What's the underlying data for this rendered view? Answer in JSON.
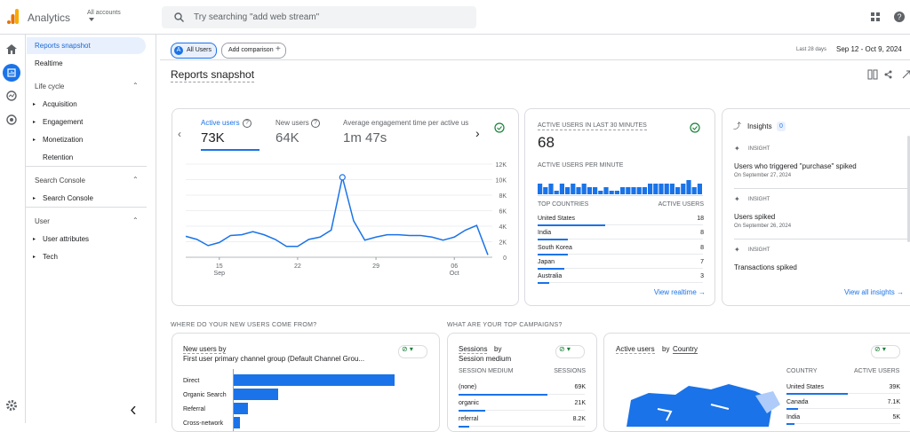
{
  "header": {
    "app_name": "Analytics",
    "account_label": "All accounts",
    "search_placeholder": "Try searching \"add web stream\""
  },
  "sidebar": {
    "top_items": [
      "Reports snapshot",
      "Realtime"
    ],
    "sections": [
      {
        "title": "Life cycle",
        "items": [
          "Acquisition",
          "Engagement",
          "Monetization",
          "Retention"
        ]
      },
      {
        "title": "Search Console",
        "items": [
          "Search Console"
        ]
      },
      {
        "title": "User",
        "items": [
          "User attributes",
          "Tech"
        ]
      }
    ]
  },
  "toolbar": {
    "segment_badge": "A",
    "segment": "All Users",
    "add_comparison": "Add comparison",
    "date_range_label": "Last 28 days",
    "date_range": "Sep 12 - Oct 9, 2024"
  },
  "page_title": "Reports snapshot",
  "overview_card": {
    "metrics": [
      {
        "label": "Active users",
        "value": "73K"
      },
      {
        "label": "New users",
        "value": "64K"
      },
      {
        "label": "Average engagement time per active us",
        "value": "1m 47s"
      }
    ],
    "chart": {
      "type": "line",
      "color": "#1a73e8",
      "categories": [
        null,
        null,
        null,
        "15",
        null,
        null,
        null,
        null,
        null,
        null,
        "22",
        null,
        null,
        null,
        null,
        null,
        null,
        "29",
        null,
        null,
        null,
        null,
        null,
        null,
        "06",
        null,
        null,
        null
      ],
      "months": [
        null,
        null,
        null,
        "Sep",
        null,
        null,
        null,
        null,
        null,
        null,
        null,
        null,
        null,
        null,
        null,
        null,
        null,
        null,
        null,
        null,
        null,
        null,
        null,
        null,
        "Oct",
        null,
        null,
        null
      ],
      "values": [
        2700,
        2300,
        1500,
        1900,
        2800,
        2900,
        3300,
        2900,
        2300,
        1400,
        1400,
        2300,
        2600,
        3500,
        10300,
        4700,
        2200,
        2600,
        2900,
        2900,
        2800,
        2800,
        2600,
        2200,
        2600,
        3500,
        4100,
        300
      ],
      "ylim": [
        0,
        12000
      ],
      "yticks": [
        0,
        {
          "value": 2000,
          "label": "2K"
        },
        {
          "value": 4000,
          "label": "4K"
        },
        {
          "value": 6000,
          "label": "6K"
        },
        {
          "value": 8000,
          "label": "8K"
        },
        {
          "value": 10000,
          "label": "10K"
        },
        {
          "value": 12000,
          "label": "12K"
        }
      ]
    }
  },
  "realtime_card": {
    "title": "ACTIVE USERS IN LAST 30 MINUTES",
    "value": "68",
    "per_minute_title": "ACTIVE USERS PER MINUTE",
    "per_minute": [
      3,
      2,
      3,
      1,
      3,
      2,
      3,
      2,
      3,
      2,
      2,
      1,
      2,
      1,
      1,
      2,
      2,
      2,
      2,
      2,
      3,
      3,
      3,
      3,
      3,
      2,
      3,
      4,
      2,
      3
    ],
    "table_headers": [
      "TOP COUNTRIES",
      "ACTIVE USERS"
    ],
    "rows": [
      [
        "United States",
        18
      ],
      [
        "India",
        8
      ],
      [
        "South Korea",
        8
      ],
      [
        "Japan",
        7
      ],
      [
        "Australia",
        3
      ]
    ],
    "link": "View realtime"
  },
  "insights_card": {
    "title": "Insights",
    "badge": "0",
    "items": [
      {
        "label": "INSIGHT",
        "text": "Users who triggered \"purchase\" spiked",
        "date": "On September 27, 2024"
      },
      {
        "label": "INSIGHT",
        "text": "Users spiked",
        "date": "On September 26, 2024"
      },
      {
        "label": "INSIGHT",
        "text": "Transactions spiked"
      }
    ],
    "link": "View all insights"
  },
  "section_headings": [
    "WHERE DO YOUR NEW USERS COME FROM?",
    "WHAT ARE YOUR TOP CAMPAIGNS?"
  ],
  "new_users_card": {
    "title": "New users by",
    "dimension": "First user primary channel group (Default Channel Grou...",
    "categories": [
      "Direct",
      "Organic Search",
      "Referral",
      "Cross-network"
    ],
    "values": [
      43000,
      12000,
      4000,
      2000
    ]
  },
  "campaigns_card": {
    "title_metric": "Sessions",
    "title_by": "by",
    "title_dimension": "Session medium",
    "table_headers": [
      "SESSION MEDIUM",
      "SESSIONS"
    ],
    "rows": [
      [
        "(none)",
        {
          "value": 69000,
          "label": "69K"
        }
      ],
      [
        "organic",
        {
          "value": 21000,
          "label": "21K"
        }
      ],
      [
        "referral",
        {
          "value": 8200,
          "label": "8.2K"
        }
      ]
    ]
  },
  "country_card": {
    "title_metric": "Active users",
    "title_by": "by",
    "title_dimension": "Country",
    "table_headers": [
      "COUNTRY",
      "ACTIVE USERS"
    ],
    "rows": [
      [
        "United States",
        {
          "value": 39000,
          "label": "39K"
        }
      ],
      [
        "Canada",
        {
          "value": 7100,
          "label": "7.1K"
        }
      ],
      [
        "India",
        {
          "value": 5000,
          "label": "5K"
        }
      ]
    ]
  }
}
